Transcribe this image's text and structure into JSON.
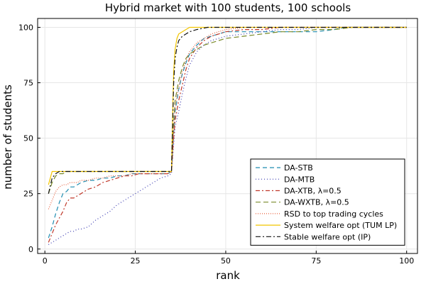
{
  "chart_data": {
    "type": "line",
    "title": "Hybrid market with 100 students, 100 schools",
    "xlabel": "rank",
    "ylabel": "number of students",
    "xlim": [
      -2,
      103
    ],
    "ylim": [
      -2,
      104
    ],
    "xticks": [
      0,
      25,
      50,
      75,
      100
    ],
    "xtick_labels": [
      "0",
      "25",
      "50",
      "75",
      "100"
    ],
    "yticks": [
      0,
      25,
      50,
      75,
      100
    ],
    "ytick_labels": [
      "0",
      "25",
      "50",
      "75",
      "100"
    ],
    "grid": true,
    "legend_position": "bottom-right",
    "series": [
      {
        "name": "DA-STB",
        "color": "#1f8cb0",
        "dash": "6,4",
        "x": [
          1,
          2,
          3,
          4,
          5,
          6,
          7,
          8,
          9,
          10,
          12,
          14,
          16,
          18,
          20,
          22,
          24,
          26,
          28,
          30,
          32,
          34,
          35,
          35.5,
          36,
          37,
          38,
          39,
          40,
          42,
          44,
          46,
          48,
          50,
          55,
          60,
          65,
          70,
          75,
          80,
          83,
          85,
          90,
          100
        ],
        "y": [
          5,
          10,
          16,
          21,
          25,
          26,
          28,
          28,
          29,
          30,
          31,
          31,
          32,
          32,
          33,
          33,
          34,
          34,
          34,
          34,
          34,
          34,
          35,
          50,
          62,
          72,
          79,
          84,
          88,
          92,
          95,
          96,
          97,
          98,
          98,
          98,
          98,
          98,
          98,
          99,
          100,
          100,
          100,
          100
        ]
      },
      {
        "name": "DA-MTB",
        "color": "#3a3ab0",
        "dash": "1,3",
        "x": [
          1,
          2,
          3,
          4,
          5,
          6,
          7,
          8,
          9,
          10,
          12,
          14,
          16,
          18,
          20,
          22,
          24,
          26,
          28,
          30,
          32,
          34,
          35,
          35.5,
          36,
          37,
          38,
          39,
          40,
          42,
          44,
          46,
          48,
          50,
          55,
          60,
          65,
          70,
          75,
          80,
          85,
          90,
          100
        ],
        "y": [
          2,
          3,
          4,
          5,
          6,
          7,
          8,
          8,
          9,
          9,
          10,
          13,
          15,
          17,
          20,
          22,
          24,
          26,
          28,
          30,
          32,
          33,
          34,
          45,
          55,
          62,
          70,
          77,
          83,
          89,
          92,
          94,
          95,
          96,
          97,
          98,
          99,
          99,
          100,
          100,
          100,
          100,
          100
        ]
      },
      {
        "name": "DA-XTB, λ=0.5",
        "color": "#c0392b",
        "dash": "6,3,2,3",
        "x": [
          1,
          2,
          3,
          4,
          5,
          6,
          7,
          8,
          9,
          10,
          12,
          14,
          16,
          18,
          20,
          22,
          24,
          26,
          28,
          30,
          32,
          34,
          35,
          35.5,
          36,
          37,
          38,
          39,
          40,
          42,
          44,
          46,
          48,
          50,
          55,
          60,
          65,
          70,
          75,
          80,
          85,
          90,
          100
        ],
        "y": [
          3,
          7,
          11,
          14,
          17,
          21,
          23,
          23,
          24,
          25,
          27,
          28,
          30,
          31,
          32,
          33,
          33,
          34,
          34,
          34,
          34,
          34,
          35,
          48,
          58,
          67,
          74,
          81,
          86,
          91,
          94,
          96,
          97,
          98,
          99,
          99,
          100,
          100,
          100,
          100,
          100,
          100,
          100
        ]
      },
      {
        "name": "DA-WXTB, λ=0.5",
        "color": "#7a8a2a",
        "dash": "7,4",
        "x": [
          1,
          2,
          3,
          4,
          5,
          6,
          7,
          8,
          9,
          10,
          12,
          14,
          16,
          18,
          20,
          22,
          24,
          26,
          28,
          30,
          32,
          34,
          35,
          35.5,
          36,
          37,
          38,
          39,
          40,
          42,
          44,
          46,
          48,
          50,
          55,
          60,
          65,
          70,
          75,
          80,
          85,
          90,
          95,
          100
        ],
        "y": [
          25,
          30,
          33,
          34,
          34,
          35,
          35,
          35,
          35,
          35,
          35,
          35,
          35,
          35,
          35,
          35,
          35,
          35,
          35,
          35,
          35,
          35,
          35,
          55,
          67,
          76,
          82,
          86,
          88,
          90,
          92,
          93,
          94,
          95,
          96,
          97,
          98,
          98,
          99,
          99,
          100,
          100,
          100,
          100
        ]
      },
      {
        "name": "RSD to top trading cycles",
        "color": "#e8603c",
        "dash": "1,2",
        "x": [
          1,
          2,
          3,
          4,
          5,
          6,
          7,
          8,
          9,
          10,
          12,
          14,
          16,
          18,
          20,
          22,
          24,
          26,
          28,
          30,
          32,
          34,
          35,
          35.5,
          36,
          37,
          38,
          39,
          40,
          42,
          44,
          46,
          48,
          50,
          55,
          60,
          65,
          70,
          75,
          80,
          85,
          90,
          100
        ],
        "y": [
          18,
          22,
          26,
          28,
          29,
          29,
          30,
          30,
          30,
          31,
          31,
          32,
          32,
          33,
          33,
          33,
          34,
          34,
          34,
          34,
          34,
          34,
          35,
          52,
          64,
          73,
          80,
          85,
          89,
          93,
          95,
          97,
          98,
          99,
          100,
          100,
          100,
          100,
          100,
          100,
          100,
          100,
          100
        ]
      },
      {
        "name": "System welfare opt (TUM LP)",
        "color": "#f2c500",
        "dash": "",
        "x": [
          1,
          2,
          3,
          4,
          5,
          6,
          8,
          10,
          15,
          20,
          25,
          30,
          34,
          35,
          35.3,
          35.6,
          36,
          36.5,
          37,
          38,
          39,
          40,
          42,
          45,
          50,
          60,
          70,
          80,
          90,
          100
        ],
        "y": [
          29,
          35,
          35,
          35,
          35,
          35,
          35,
          35,
          35,
          35,
          35,
          35,
          35,
          35,
          60,
          80,
          90,
          95,
          97,
          98,
          99,
          100,
          100,
          100,
          100,
          100,
          100,
          100,
          100,
          100
        ]
      },
      {
        "name": "Stable welfare opt (IP)",
        "color": "#111111",
        "dash": "7,3,2,3",
        "x": [
          1,
          2,
          3,
          4,
          5,
          6,
          8,
          10,
          15,
          20,
          25,
          30,
          34,
          35,
          35.3,
          35.6,
          36,
          36.5,
          37,
          38,
          39,
          40,
          42,
          45,
          50,
          60,
          70,
          80,
          90,
          100
        ],
        "y": [
          25,
          32,
          34,
          35,
          35,
          35,
          35,
          35,
          35,
          35,
          35,
          35,
          35,
          35,
          55,
          75,
          86,
          91,
          94,
          96,
          97,
          98,
          99,
          100,
          100,
          100,
          100,
          100,
          100,
          100
        ]
      }
    ]
  }
}
